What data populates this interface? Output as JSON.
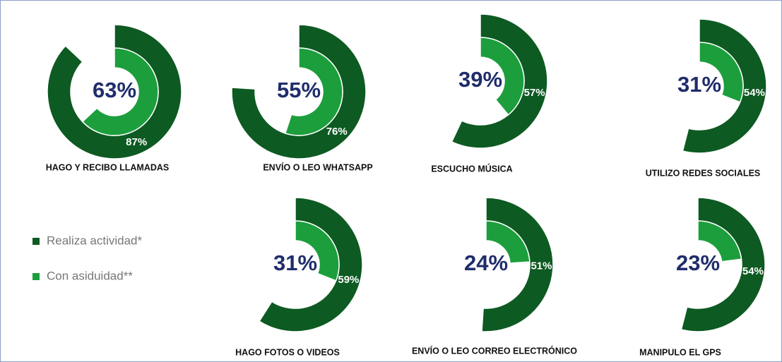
{
  "chart_data": {
    "type": "radial",
    "categories": [
      "HAGO Y RECIBO LLAMADAS",
      "ENVÍO O LEO WHATSAPP",
      "ESCUCHO MÚSICA",
      "UTILIZO REDES SOCIALES",
      "HAGO FOTOS O VIDEOS",
      "ENVÍO O LEO CORREO ELECTRÓNICO",
      "MANIPULO EL GPS"
    ],
    "rlim": [
      0,
      100
    ],
    "series": [
      {
        "name": "Realiza actividad*",
        "color": "#0d5a22",
        "values": [
          87,
          76,
          57,
          54,
          59,
          51,
          54
        ],
        "value_labels": [
          "87%",
          "76%",
          "57%",
          "54%",
          "59%",
          "51%",
          "54%"
        ]
      },
      {
        "name": "Con asiduidad**",
        "color": "#1c9e3c",
        "values": [
          63,
          55,
          39,
          31,
          31,
          24,
          23
        ],
        "value_labels": [
          "63%",
          "55%",
          "39%",
          "31%",
          "31%",
          "24%",
          "23%"
        ]
      }
    ]
  }
}
